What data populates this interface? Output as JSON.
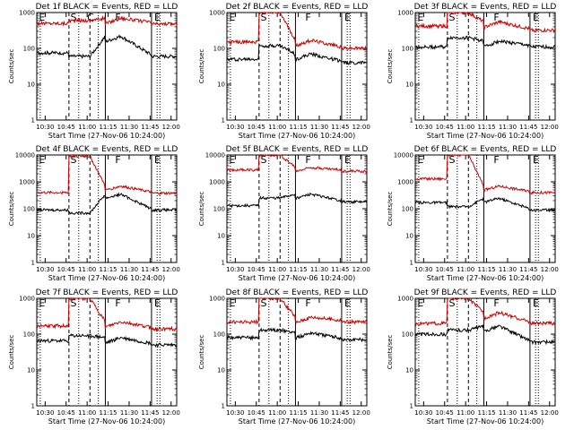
{
  "chart_data": [
    {
      "type": "line",
      "title": "Det 1f BLACK = Events, RED = LLD",
      "xlabel": "Start Time (27-Nov-06 10:24:00)",
      "ylabel": "Counts/sec",
      "yscale": "log",
      "ylim": [
        1,
        1000
      ],
      "y_ticks": [
        "1",
        "10",
        "100",
        "1000"
      ],
      "x_ticks": [
        "10:30",
        "10:45",
        "11:00",
        "11:15",
        "11:30",
        "11:45",
        "12:00"
      ],
      "markers": [
        "E",
        "S",
        "C",
        "F",
        "E"
      ],
      "series": [
        {
          "color": "#cc0000",
          "baseline": 500,
          "peak": 600,
          "post_peak": 700,
          "post_end": 480
        },
        {
          "color": "#000000",
          "baseline": 75,
          "peak": 60,
          "post_peak": 220,
          "post_end": 60
        }
      ]
    },
    {
      "type": "line",
      "title": "Det 2f BLACK = Events, RED = LLD",
      "xlabel": "Start Time (27-Nov-06 10:24:00)",
      "ylabel": "Counts/sec",
      "yscale": "log",
      "ylim": [
        1,
        1000
      ],
      "y_ticks": [
        "1",
        "10",
        "100",
        "1000"
      ],
      "x_ticks": [
        "10:30",
        "10:45",
        "11:00",
        "11:15",
        "11:30",
        "11:45",
        "12:00"
      ],
      "markers": [
        "E",
        "S",
        "F",
        "E"
      ],
      "series": [
        {
          "color": "#cc0000",
          "baseline": 150,
          "peak": 1000,
          "post_peak": 170,
          "post_end": 100
        },
        {
          "color": "#000000",
          "baseline": 50,
          "peak": 120,
          "post_peak": 70,
          "post_end": 40
        }
      ]
    },
    {
      "type": "line",
      "title": "Det 3f BLACK = Events, RED = LLD",
      "xlabel": "Start Time (27-Nov-06 10:24:00)",
      "ylabel": "Counts/sec",
      "yscale": "log",
      "ylim": [
        1,
        1000
      ],
      "y_ticks": [
        "1",
        "10",
        "100",
        "1000"
      ],
      "x_ticks": [
        "10:30",
        "10:45",
        "11:00",
        "11:15",
        "11:30",
        "11:45",
        "12:00"
      ],
      "markers": [
        "E",
        "S",
        "F",
        "E"
      ],
      "series": [
        {
          "color": "#cc0000",
          "baseline": 420,
          "peak": 1000,
          "post_peak": 550,
          "post_end": 320
        },
        {
          "color": "#000000",
          "baseline": 110,
          "peak": 200,
          "post_peak": 160,
          "post_end": 110
        }
      ]
    },
    {
      "type": "line",
      "title": "Det 4f BLACK = Events, RED = LLD",
      "xlabel": "Start Time (27-Nov-06 10:24:00)",
      "ylabel": "Counts/sec",
      "yscale": "log",
      "ylim": [
        1,
        10000
      ],
      "y_ticks": [
        "1",
        "10",
        "100",
        "1000",
        "10000"
      ],
      "x_ticks": [
        "10:30",
        "10:45",
        "11:00",
        "11:15",
        "11:30",
        "11:45",
        "12:00"
      ],
      "markers": [
        "E",
        "S",
        "F",
        "E"
      ],
      "series": [
        {
          "color": "#cc0000",
          "baseline": 400,
          "peak": 9000,
          "post_peak": 700,
          "post_end": 380
        },
        {
          "color": "#000000",
          "baseline": 90,
          "peak": 70,
          "post_peak": 350,
          "post_end": 90
        }
      ]
    },
    {
      "type": "line",
      "title": "Det 5f BLACK = Events, RED = LLD",
      "xlabel": "Start Time (27-Nov-06 10:24:00)",
      "ylabel": "Counts/sec",
      "yscale": "log",
      "ylim": [
        1,
        10000
      ],
      "y_ticks": [
        "1",
        "10",
        "100",
        "1000",
        "10000"
      ],
      "x_ticks": [
        "10:30",
        "10:45",
        "11:00",
        "11:15",
        "11:30",
        "11:45",
        "12:00"
      ],
      "markers": [
        "E",
        "S",
        "F",
        "E"
      ],
      "series": [
        {
          "color": "#cc0000",
          "baseline": 2800,
          "peak": 10000,
          "post_peak": 3500,
          "post_end": 2500
        },
        {
          "color": "#000000",
          "baseline": 130,
          "peak": 250,
          "post_peak": 350,
          "post_end": 180
        }
      ]
    },
    {
      "type": "line",
      "title": "Det 6f BLACK = Events, RED = LLD",
      "xlabel": "Start Time (27-Nov-06 10:24:00)",
      "ylabel": "Counts/sec",
      "yscale": "log",
      "ylim": [
        1,
        10000
      ],
      "y_ticks": [
        "1",
        "10",
        "100",
        "1000",
        "10000"
      ],
      "x_ticks": [
        "10:30",
        "10:45",
        "11:00",
        "11:15",
        "11:30",
        "11:45",
        "12:00"
      ],
      "markers": [
        "E",
        "S",
        "F",
        "E"
      ],
      "series": [
        {
          "color": "#cc0000",
          "baseline": 1300,
          "peak": 10000,
          "post_peak": 700,
          "post_end": 400
        },
        {
          "color": "#000000",
          "baseline": 170,
          "peak": 120,
          "post_peak": 250,
          "post_end": 90
        }
      ]
    },
    {
      "type": "line",
      "title": "Det 7f BLACK = Events, RED = LLD",
      "xlabel": "Start Time (27-Nov-06 10:24:00)",
      "ylabel": "Counts/sec",
      "yscale": "log",
      "ylim": [
        1,
        1000
      ],
      "y_ticks": [
        "1",
        "10",
        "100",
        "1000"
      ],
      "x_ticks": [
        "10:30",
        "10:45",
        "11:00",
        "11:15",
        "11:30",
        "11:45",
        "12:00"
      ],
      "markers": [
        "E",
        "S",
        "F",
        "E"
      ],
      "series": [
        {
          "color": "#cc0000",
          "baseline": 170,
          "peak": 1000,
          "post_peak": 220,
          "post_end": 140
        },
        {
          "color": "#000000",
          "baseline": 65,
          "peak": 90,
          "post_peak": 80,
          "post_end": 50
        }
      ]
    },
    {
      "type": "line",
      "title": "Det 8f BLACK = Events, RED = LLD",
      "xlabel": "Start Time (27-Nov-06 10:24:00)",
      "ylabel": "Counts/sec",
      "yscale": "log",
      "ylim": [
        1,
        1000
      ],
      "y_ticks": [
        "1",
        "10",
        "100",
        "1000"
      ],
      "x_ticks": [
        "10:30",
        "10:45",
        "11:00",
        "11:15",
        "11:30",
        "11:45",
        "12:00"
      ],
      "markers": [
        "E",
        "S",
        "F",
        "E"
      ],
      "series": [
        {
          "color": "#cc0000",
          "baseline": 220,
          "peak": 1000,
          "post_peak": 300,
          "post_end": 220
        },
        {
          "color": "#000000",
          "baseline": 80,
          "peak": 130,
          "post_peak": 110,
          "post_end": 70
        }
      ]
    },
    {
      "type": "line",
      "title": "Det 9f BLACK = Events, RED = LLD",
      "xlabel": "Start Time (27-Nov-06 10:24:00)",
      "ylabel": "Counts/sec",
      "yscale": "log",
      "ylim": [
        1,
        1000
      ],
      "y_ticks": [
        "1",
        "10",
        "100",
        "1000"
      ],
      "x_ticks": [
        "10:30",
        "10:45",
        "11:00",
        "11:15",
        "11:30",
        "11:45",
        "12:00"
      ],
      "markers": [
        "E",
        "S",
        "F",
        "E"
      ],
      "series": [
        {
          "color": "#cc0000",
          "baseline": 200,
          "peak": 1000,
          "post_peak": 400,
          "post_end": 200
        },
        {
          "color": "#000000",
          "baseline": 100,
          "peak": 130,
          "post_peak": 170,
          "post_end": 60
        }
      ]
    }
  ]
}
